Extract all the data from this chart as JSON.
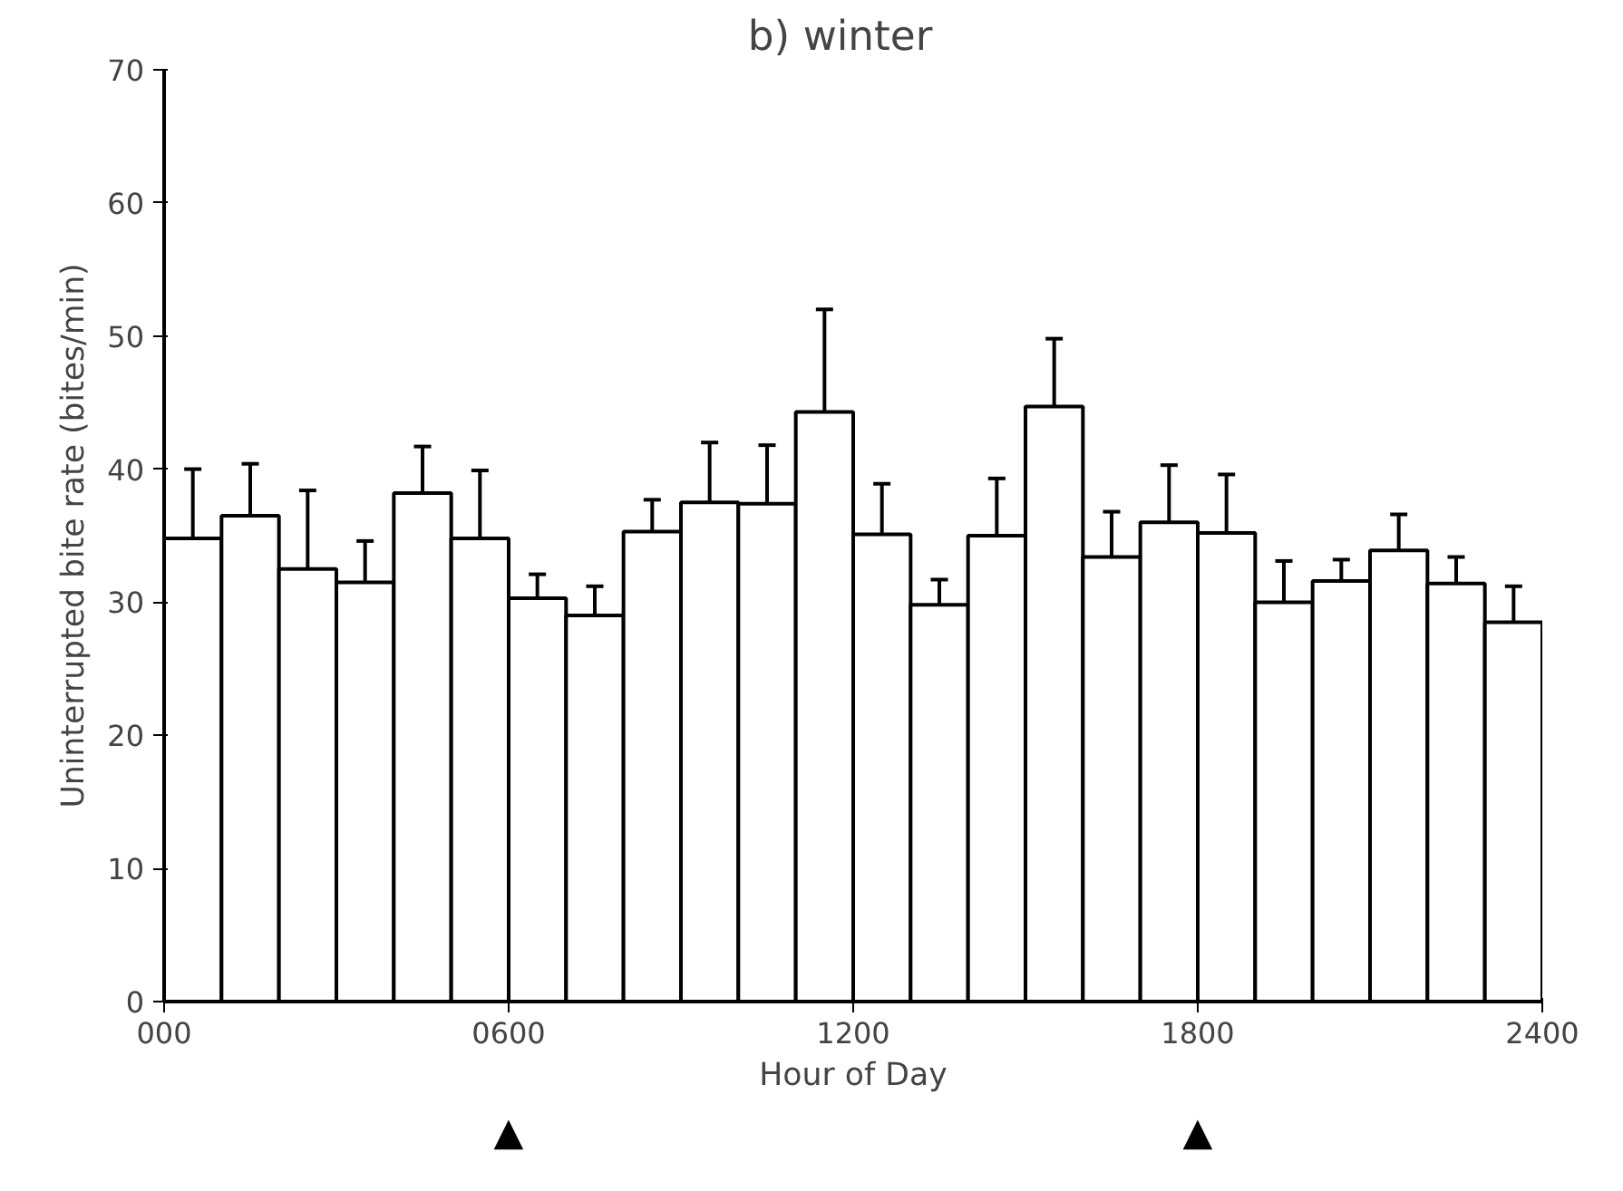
{
  "chart_data": {
    "type": "bar",
    "title": "b)   winter",
    "xlabel": "Hour of Day",
    "ylabel": "Uninterrupted bite rate (bites/min)",
    "x": [
      50,
      150,
      250,
      350,
      450,
      550,
      650,
      750,
      850,
      950,
      1050,
      1150,
      1250,
      1350,
      1450,
      1550,
      1650,
      1750,
      1850,
      1950,
      2050,
      2150,
      2250,
      2350
    ],
    "values": [
      34.8,
      36.5,
      32.5,
      31.5,
      38.2,
      34.8,
      30.3,
      29.0,
      35.3,
      37.5,
      37.4,
      44.3,
      35.1,
      29.8,
      35.0,
      44.7,
      33.4,
      36.0,
      35.2,
      30.0,
      31.6,
      33.9,
      31.4,
      28.5
    ],
    "errors": [
      [
        34.8,
        40.0
      ],
      [
        36.5,
        40.4
      ],
      [
        32.5,
        38.4
      ],
      [
        31.5,
        34.6
      ],
      [
        38.2,
        41.7
      ],
      [
        34.8,
        39.9
      ],
      [
        30.3,
        32.1
      ],
      [
        29.0,
        31.2
      ],
      [
        35.3,
        37.7
      ],
      [
        37.5,
        42.0
      ],
      [
        37.4,
        41.8
      ],
      [
        44.3,
        52.0
      ],
      [
        35.1,
        38.9
      ],
      [
        29.8,
        31.7
      ],
      [
        35.0,
        39.3
      ],
      [
        44.7,
        49.8
      ],
      [
        33.4,
        36.8
      ],
      [
        36.0,
        40.3
      ],
      [
        35.2,
        39.6
      ],
      [
        30.0,
        33.1
      ],
      [
        31.6,
        33.2
      ],
      [
        33.9,
        36.6
      ],
      [
        31.4,
        33.4
      ],
      [
        28.5,
        31.2
      ]
    ],
    "color": "#ffffff",
    "xlim": [
      0,
      2400
    ],
    "xticks": [
      {
        "value": 0,
        "label": "000"
      },
      {
        "value": 600,
        "label": "0600"
      },
      {
        "value": 1200,
        "label": "1200"
      },
      {
        "value": 1800,
        "label": "1800"
      },
      {
        "value": 2400,
        "label": "2400"
      }
    ],
    "ylim": [
      0,
      70
    ],
    "yticks": [
      0,
      10,
      20,
      30,
      40,
      50,
      60,
      70
    ],
    "annotations": [
      "▲",
      "▲"
    ],
    "grid": false
  }
}
